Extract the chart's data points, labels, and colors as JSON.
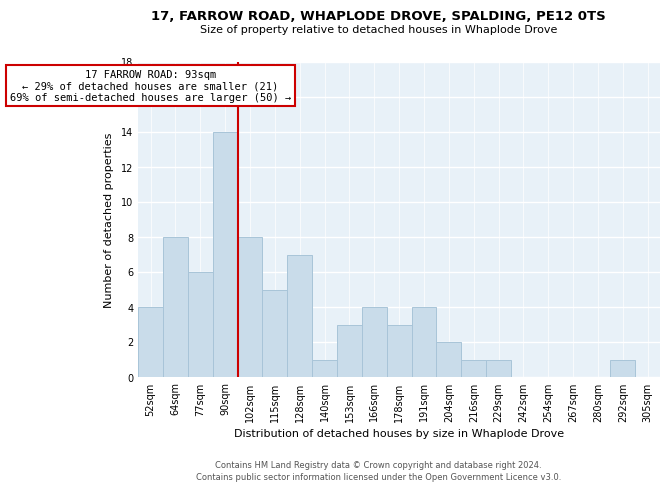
{
  "title": "17, FARROW ROAD, WHAPLODE DROVE, SPALDING, PE12 0TS",
  "subtitle": "Size of property relative to detached houses in Whaplode Drove",
  "xlabel": "Distribution of detached houses by size in Whaplode Drove",
  "ylabel": "Number of detached properties",
  "bins": [
    "52sqm",
    "64sqm",
    "77sqm",
    "90sqm",
    "102sqm",
    "115sqm",
    "128sqm",
    "140sqm",
    "153sqm",
    "166sqm",
    "178sqm",
    "191sqm",
    "204sqm",
    "216sqm",
    "229sqm",
    "242sqm",
    "254sqm",
    "267sqm",
    "280sqm",
    "292sqm",
    "305sqm"
  ],
  "counts": [
    4,
    8,
    6,
    14,
    8,
    5,
    7,
    1,
    3,
    4,
    3,
    4,
    2,
    1,
    1,
    0,
    0,
    0,
    0,
    1,
    0
  ],
  "bar_color": "#c9dcea",
  "bar_edge_color": "#a8c4d8",
  "vline_x_index": 3,
  "vline_color": "#cc0000",
  "annotation_title": "17 FARROW ROAD: 93sqm",
  "annotation_line1": "← 29% of detached houses are smaller (21)",
  "annotation_line2": "69% of semi-detached houses are larger (50) →",
  "annotation_box_color": "#ffffff",
  "annotation_box_edge": "#cc0000",
  "ylim": [
    0,
    18
  ],
  "yticks": [
    0,
    2,
    4,
    6,
    8,
    10,
    12,
    14,
    16,
    18
  ],
  "footer1": "Contains HM Land Registry data © Crown copyright and database right 2024.",
  "footer2": "Contains public sector information licensed under the Open Government Licence v3.0.",
  "background_color": "#e8f1f8",
  "fig_background": "#ffffff",
  "title_fontsize": 9.5,
  "subtitle_fontsize": 8.0,
  "axis_label_fontsize": 8.0,
  "tick_fontsize": 7.0,
  "annotation_fontsize": 7.5,
  "footer_fontsize": 6.0
}
